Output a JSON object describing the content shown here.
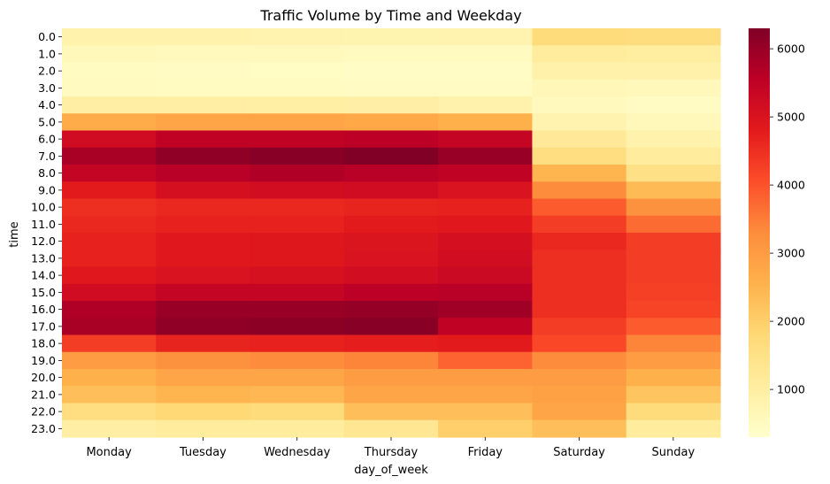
{
  "chart_data": {
    "type": "heatmap",
    "title": "Traffic Volume by Time and Weekday",
    "xlabel": "day_of_week",
    "ylabel": "time",
    "x_categories": [
      "Monday",
      "Tuesday",
      "Wednesday",
      "Thursday",
      "Friday",
      "Saturday",
      "Sunday"
    ],
    "y_categories": [
      "0.0",
      "1.0",
      "2.0",
      "3.0",
      "4.0",
      "5.0",
      "6.0",
      "7.0",
      "8.0",
      "9.0",
      "10.0",
      "11.0",
      "12.0",
      "13.0",
      "14.0",
      "15.0",
      "16.0",
      "17.0",
      "18.0",
      "19.0",
      "20.0",
      "21.0",
      "22.0",
      "23.0"
    ],
    "values": [
      [
        850,
        830,
        800,
        780,
        800,
        1700,
        1650
      ],
      [
        600,
        540,
        540,
        500,
        500,
        1100,
        1050
      ],
      [
        480,
        450,
        440,
        420,
        420,
        900,
        880
      ],
      [
        520,
        480,
        480,
        450,
        450,
        650,
        600
      ],
      [
        1000,
        1000,
        980,
        950,
        850,
        550,
        450
      ],
      [
        2700,
        2800,
        2800,
        2750,
        2600,
        800,
        600
      ],
      [
        5200,
        5500,
        5500,
        5550,
        5400,
        1200,
        850
      ],
      [
        5800,
        6100,
        6200,
        6300,
        6000,
        1600,
        1100
      ],
      [
        5400,
        5600,
        5700,
        5600,
        5500,
        2500,
        1500
      ],
      [
        4800,
        5100,
        5150,
        5200,
        5000,
        3300,
        2400
      ],
      [
        4500,
        4600,
        4600,
        4650,
        4700,
        3900,
        3200
      ],
      [
        4600,
        4700,
        4700,
        4800,
        4850,
        4300,
        3700
      ],
      [
        4700,
        4850,
        4900,
        4950,
        5100,
        4600,
        4300
      ],
      [
        4700,
        4850,
        4900,
        5000,
        5150,
        4500,
        4300
      ],
      [
        4850,
        5000,
        5050,
        5150,
        5300,
        4500,
        4300
      ],
      [
        5200,
        5400,
        5400,
        5550,
        5600,
        4500,
        4250
      ],
      [
        5700,
        6000,
        6000,
        6050,
        5900,
        4500,
        4200
      ],
      [
        5800,
        6100,
        6150,
        6200,
        5500,
        4300,
        3900
      ],
      [
        4300,
        4650,
        4700,
        4750,
        4800,
        4150,
        3400
      ],
      [
        3000,
        3200,
        3300,
        3400,
        3800,
        3300,
        3000
      ],
      [
        2600,
        2800,
        2800,
        3000,
        3000,
        3000,
        2600
      ],
      [
        2300,
        2500,
        2450,
        2800,
        2800,
        2900,
        2200
      ],
      [
        1600,
        1800,
        1700,
        2300,
        2300,
        2800,
        1700
      ],
      [
        1000,
        1100,
        1100,
        1300,
        2000,
        2300,
        1100
      ]
    ],
    "vmin": 300,
    "vmax": 6300,
    "colormap": "YlOrRd",
    "colorbar_ticks": [
      1000,
      2000,
      3000,
      4000,
      5000,
      6000
    ],
    "grid": false
  }
}
